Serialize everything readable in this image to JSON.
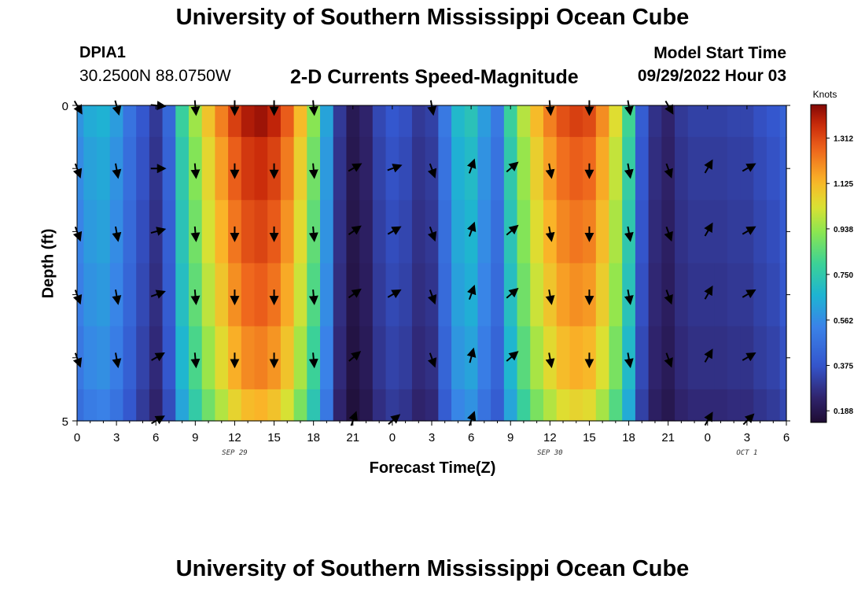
{
  "page": {
    "title": "University of Southern Mississippi Ocean Cube",
    "station_id": "DPIA1",
    "coordinates": "30.2500N  88.0750W",
    "subtitle": "2-D Currents Speed-Magnitude",
    "model_start_label": "Model Start Time",
    "model_start_value": "09/29/2022 Hour 03",
    "second_title": "University of Southern Mississippi Ocean Cube"
  },
  "chart_data": {
    "type": "heatmap",
    "title": "2-D Currents Speed-Magnitude",
    "xlabel": "Forecast Time(Z)",
    "ylabel": "Depth (ft)",
    "colorbar_units": "Knots",
    "colorbar_ticks": [
      "1.312",
      "1.125",
      "0.938",
      "0.750",
      "0.562",
      "0.375",
      "0.188"
    ],
    "colorbar_tick_values": [
      1.312,
      1.125,
      0.938,
      0.75,
      0.562,
      0.375,
      0.188
    ],
    "colorbar_range": [
      0.14,
      1.45
    ],
    "x_tick_labels": [
      "0",
      "3",
      "6",
      "9",
      "12",
      "15",
      "18",
      "21",
      "0",
      "3",
      "6",
      "9",
      "12",
      "15",
      "18",
      "21",
      "0",
      "3",
      "6"
    ],
    "x_range_hours": [
      0,
      54
    ],
    "date_labels": [
      {
        "hour": 12,
        "text": "SEP 29"
      },
      {
        "hour": 36,
        "text": "SEP 30"
      },
      {
        "hour": 51,
        "text": "OCT 1"
      }
    ],
    "y_tick_labels": [
      "0",
      "5"
    ],
    "y_range_ft": [
      0,
      5
    ],
    "depth_levels_ft": [
      0,
      1,
      2,
      3,
      4,
      5
    ],
    "time_hours": [
      0,
      1,
      2,
      3,
      4,
      5,
      6,
      7,
      8,
      9,
      10,
      11,
      12,
      13,
      14,
      15,
      16,
      17,
      18,
      19,
      20,
      21,
      22,
      23,
      24,
      25,
      26,
      27,
      28,
      29,
      30,
      31,
      32,
      33,
      34,
      35,
      36,
      37,
      38,
      39,
      40,
      41,
      42,
      43,
      44,
      45,
      46,
      47,
      48,
      49,
      50,
      51,
      52,
      53,
      54
    ],
    "speed_by_hour": [
      0.58,
      0.64,
      0.66,
      0.6,
      0.48,
      0.38,
      0.3,
      0.44,
      0.78,
      0.95,
      1.1,
      1.22,
      1.33,
      1.4,
      1.42,
      1.38,
      1.28,
      1.12,
      0.92,
      0.62,
      0.3,
      0.2,
      0.24,
      0.34,
      0.38,
      0.36,
      0.3,
      0.32,
      0.5,
      0.68,
      0.72,
      0.6,
      0.5,
      0.78,
      0.98,
      1.12,
      1.22,
      1.3,
      1.33,
      1.31,
      1.2,
      1.04,
      0.8,
      0.4,
      0.28,
      0.24,
      0.3,
      0.32,
      0.32,
      0.32,
      0.33,
      0.33,
      0.36,
      0.38,
      0.42
    ],
    "depth_factor": [
      1.0,
      0.96,
      0.93,
      0.9,
      0.86,
      0.8
    ],
    "arrow_times_hours": [
      0,
      3,
      6,
      9,
      12,
      15,
      18,
      21,
      24,
      27,
      30,
      33,
      36,
      39,
      42,
      45,
      48,
      51,
      54
    ],
    "arrow_depths_ft": [
      0,
      1,
      2,
      3,
      4,
      5
    ],
    "arrow_directions_deg": [
      [
        150,
        165,
        95,
        175,
        180,
        180,
        175,
        null,
        null,
        170,
        null,
        null,
        175,
        180,
        170,
        150,
        null,
        null,
        null
      ],
      [
        160,
        170,
        90,
        175,
        180,
        180,
        175,
        60,
        70,
        160,
        20,
        50,
        170,
        180,
        170,
        160,
        30,
        60,
        null
      ],
      [
        160,
        170,
        75,
        175,
        180,
        180,
        175,
        55,
        60,
        160,
        20,
        50,
        170,
        180,
        170,
        160,
        30,
        60,
        null
      ],
      [
        160,
        170,
        70,
        175,
        180,
        180,
        175,
        55,
        60,
        160,
        20,
        50,
        170,
        180,
        170,
        160,
        30,
        60,
        null
      ],
      [
        160,
        170,
        60,
        175,
        180,
        180,
        175,
        50,
        null,
        160,
        15,
        50,
        170,
        180,
        170,
        160,
        30,
        60,
        null
      ],
      [
        null,
        null,
        60,
        null,
        null,
        null,
        null,
        20,
        50,
        null,
        20,
        null,
        null,
        null,
        null,
        null,
        30,
        45,
        null
      ]
    ]
  }
}
